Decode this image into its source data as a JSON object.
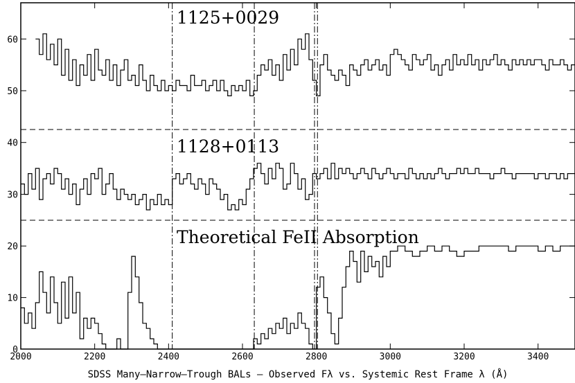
{
  "chart_data": {
    "type": "line",
    "xlabel": "SDSS Many–Narrow–Trough BALs – Observed Fλ vs. Systemic Rest Frame λ (Å)",
    "xlim": [
      2000,
      3500
    ],
    "x_ticks": [
      2000,
      2200,
      2400,
      2600,
      2800,
      3000,
      3200,
      3400
    ],
    "vlines": [
      2410,
      2632,
      2795,
      2803
    ],
    "grid": false,
    "panels": [
      {
        "label": "1125+0029",
        "ylim": [
          42.5,
          67
        ],
        "y_ticks": [
          50,
          60
        ],
        "series": [
          {
            "x": [
              2040,
              2050,
              2060,
              2070,
              2080,
              2090,
              2100,
              2110,
              2120,
              2130,
              2140,
              2150,
              2160,
              2170,
              2180,
              2190,
              2200,
              2210,
              2220,
              2230,
              2240,
              2250,
              2260,
              2270,
              2280,
              2290,
              2300,
              2310,
              2320,
              2330,
              2340,
              2350,
              2360,
              2370,
              2380,
              2390,
              2400,
              2410,
              2420,
              2430,
              2440,
              2450,
              2460,
              2470,
              2480,
              2490,
              2500,
              2510,
              2520,
              2530,
              2540,
              2550,
              2560,
              2570,
              2580,
              2590,
              2600,
              2610,
              2620,
              2630,
              2640,
              2650,
              2660,
              2670,
              2680,
              2690,
              2700,
              2710,
              2720,
              2730,
              2740,
              2750,
              2760,
              2770,
              2780,
              2790,
              2800,
              2810,
              2820,
              2830,
              2840,
              2850,
              2860,
              2870,
              2880,
              2890,
              2900,
              2910,
              2920,
              2930,
              2940,
              2950,
              2960,
              2970,
              2980,
              2990,
              3000,
              3010,
              3020,
              3030,
              3040,
              3050,
              3060,
              3070,
              3080,
              3090,
              3100,
              3110,
              3120,
              3130,
              3140,
              3150,
              3160,
              3170,
              3180,
              3190,
              3200,
              3210,
              3220,
              3230,
              3240,
              3250,
              3260,
              3270,
              3280,
              3290,
              3300,
              3310,
              3320,
              3330,
              3340,
              3350,
              3360,
              3370,
              3380,
              3390,
              3400,
              3410,
              3420,
              3430,
              3440,
              3450,
              3460,
              3470,
              3480,
              3490,
              3500
            ],
            "y": [
              60,
              57,
              61,
              56,
              59,
              55,
              60,
              53,
              58,
              52,
              56,
              51,
              55,
              53,
              57,
              52,
              58,
              54,
              53,
              56,
              52,
              55,
              51,
              54,
              56,
              52,
              53,
              51,
              55,
              52,
              50,
              53,
              51,
              50,
              52,
              50,
              51,
              50,
              52,
              51,
              51,
              50,
              53,
              51,
              51,
              52,
              50,
              51,
              52,
              50,
              52,
              50,
              49,
              51,
              50,
              51,
              50,
              52,
              49,
              50,
              53,
              55,
              54,
              56,
              53,
              55,
              52,
              57,
              54,
              58,
              55,
              60,
              58,
              61,
              56,
              52,
              49,
              55,
              57,
              54,
              53,
              52,
              54,
              53,
              51,
              55,
              54,
              53,
              55,
              56,
              54,
              55,
              56,
              54,
              55,
              53,
              57,
              58,
              57,
              56,
              55,
              54,
              57,
              56,
              55,
              56,
              57,
              54,
              55,
              53,
              55,
              56,
              54,
              57,
              55,
              56,
              55,
              57,
              55,
              56,
              54,
              56,
              55,
              56,
              57,
              55,
              56,
              55,
              54,
              56,
              55,
              56,
              55,
              56,
              55,
              56,
              56,
              55,
              54,
              56,
              55,
              55,
              56,
              55,
              54,
              55,
              55
            ]
          }
        ]
      },
      {
        "label": "1128+0113",
        "ylim": [
          25,
          42.5
        ],
        "y_ticks": [
          30,
          40
        ],
        "series": [
          {
            "x": [
              2000,
              2010,
              2020,
              2030,
              2040,
              2050,
              2060,
              2070,
              2080,
              2090,
              2100,
              2110,
              2120,
              2130,
              2140,
              2150,
              2160,
              2170,
              2180,
              2190,
              2200,
              2210,
              2220,
              2230,
              2240,
              2250,
              2260,
              2270,
              2280,
              2290,
              2300,
              2310,
              2320,
              2330,
              2340,
              2350,
              2360,
              2370,
              2380,
              2390,
              2400,
              2410,
              2420,
              2430,
              2440,
              2450,
              2460,
              2470,
              2480,
              2490,
              2500,
              2510,
              2520,
              2530,
              2540,
              2550,
              2560,
              2570,
              2580,
              2590,
              2600,
              2610,
              2620,
              2630,
              2640,
              2650,
              2660,
              2670,
              2680,
              2690,
              2700,
              2710,
              2720,
              2730,
              2740,
              2750,
              2760,
              2770,
              2780,
              2790,
              2800,
              2810,
              2820,
              2830,
              2840,
              2850,
              2860,
              2870,
              2880,
              2890,
              2900,
              2910,
              2920,
              2930,
              2940,
              2950,
              2960,
              2970,
              2980,
              2990,
              3000,
              3010,
              3020,
              3030,
              3040,
              3050,
              3060,
              3070,
              3080,
              3090,
              3100,
              3110,
              3120,
              3130,
              3140,
              3150,
              3160,
              3170,
              3180,
              3190,
              3200,
              3210,
              3220,
              3230,
              3240,
              3250,
              3260,
              3270,
              3280,
              3290,
              3300,
              3310,
              3320,
              3330,
              3340,
              3350,
              3360,
              3370,
              3380,
              3390,
              3400,
              3410,
              3420,
              3430,
              3440,
              3450,
              3460,
              3470,
              3480,
              3490,
              3500
            ],
            "y": [
              32,
              30,
              34,
              31,
              35,
              29,
              33,
              34,
              32,
              35,
              34,
              31,
              33,
              30,
              32,
              28,
              31,
              33,
              30,
              34,
              33,
              35,
              30,
              32,
              34,
              31,
              29,
              31,
              30,
              29,
              30,
              28,
              29,
              30,
              27,
              29,
              28,
              30,
              28,
              29,
              28,
              33,
              34,
              32,
              33,
              34,
              32,
              31,
              33,
              32,
              30,
              33,
              32,
              31,
              29,
              30,
              27,
              28,
              27,
              29,
              28,
              31,
              33,
              35,
              36,
              34,
              32,
              35,
              33,
              36,
              35,
              31,
              32,
              36,
              34,
              31,
              33,
              29,
              30,
              34,
              33,
              34,
              35,
              33,
              36,
              33,
              35,
              34,
              35,
              34,
              33,
              34,
              35,
              34,
              33,
              35,
              34,
              33,
              34,
              35,
              34,
              33,
              34,
              34,
              33,
              35,
              34,
              33,
              34,
              33,
              34,
              33,
              34,
              35,
              34,
              33,
              34,
              34,
              35,
              34,
              35,
              34,
              34,
              35,
              34,
              34,
              34,
              33,
              34,
              34,
              35,
              34,
              34,
              33,
              34,
              34,
              34,
              34,
              34,
              33,
              34,
              34,
              33,
              34,
              34,
              33,
              34,
              33,
              34,
              34,
              33
            ]
          }
        ]
      },
      {
        "label": "Theoretical FeII Absorption",
        "ylim": [
          0,
          25
        ],
        "y_ticks": [
          0,
          10,
          20
        ],
        "series": [
          {
            "x": [
              2000,
              2010,
              2020,
              2030,
              2040,
              2050,
              2060,
              2070,
              2080,
              2090,
              2100,
              2110,
              2120,
              2130,
              2140,
              2150,
              2160,
              2170,
              2180,
              2190,
              2200,
              2210,
              2220,
              2230,
              2240,
              2250,
              2260,
              2270,
              2280,
              2290,
              2300,
              2310,
              2320,
              2330,
              2340,
              2350,
              2360,
              2370,
              2380,
              2390,
              2400,
              2410,
              2420,
              2430,
              2440,
              2450,
              2460,
              2470,
              2480,
              2490,
              2500,
              2510,
              2520,
              2530,
              2540,
              2550,
              2560,
              2570,
              2580,
              2590,
              2600,
              2610,
              2620,
              2630,
              2640,
              2650,
              2660,
              2670,
              2680,
              2690,
              2700,
              2710,
              2720,
              2730,
              2740,
              2750,
              2760,
              2770,
              2780,
              2790,
              2800,
              2810,
              2820,
              2830,
              2840,
              2850,
              2860,
              2870,
              2880,
              2890,
              2900,
              2910,
              2920,
              2930,
              2940,
              2950,
              2960,
              2970,
              2980,
              2990,
              3000,
              3020,
              3040,
              3060,
              3080,
              3100,
              3120,
              3140,
              3160,
              3180,
              3200,
              3220,
              3240,
              3260,
              3280,
              3300,
              3320,
              3340,
              3360,
              3380,
              3400,
              3420,
              3440,
              3460,
              3480,
              3500
            ],
            "y": [
              8,
              5,
              7,
              4,
              9,
              15,
              11,
              7,
              14,
              9,
              5,
              13,
              6,
              14,
              7,
              11,
              2,
              6,
              4,
              6,
              5,
              3,
              1,
              0,
              0,
              0,
              2,
              0,
              0,
              11,
              18,
              14,
              9,
              5,
              4,
              2,
              1,
              0,
              0,
              0,
              0,
              0,
              0,
              0,
              0,
              0,
              0,
              0,
              0,
              0,
              0,
              0,
              0,
              0,
              0,
              0,
              0,
              0,
              0,
              0,
              0,
              0,
              0,
              2,
              1,
              3,
              2,
              4,
              3,
              5,
              4,
              6,
              3,
              5,
              4,
              7,
              5,
              4,
              1,
              0,
              12,
              14,
              10,
              7,
              3,
              1,
              6,
              12,
              16,
              19,
              17,
              13,
              19,
              15,
              18,
              16,
              17,
              14,
              18,
              16,
              19,
              20,
              19,
              18,
              19,
              20,
              19,
              20,
              19,
              18,
              19,
              19,
              20,
              20,
              20,
              20,
              19,
              20,
              20,
              20,
              19,
              20,
              19,
              20,
              20,
              20
            ]
          }
        ]
      }
    ]
  }
}
